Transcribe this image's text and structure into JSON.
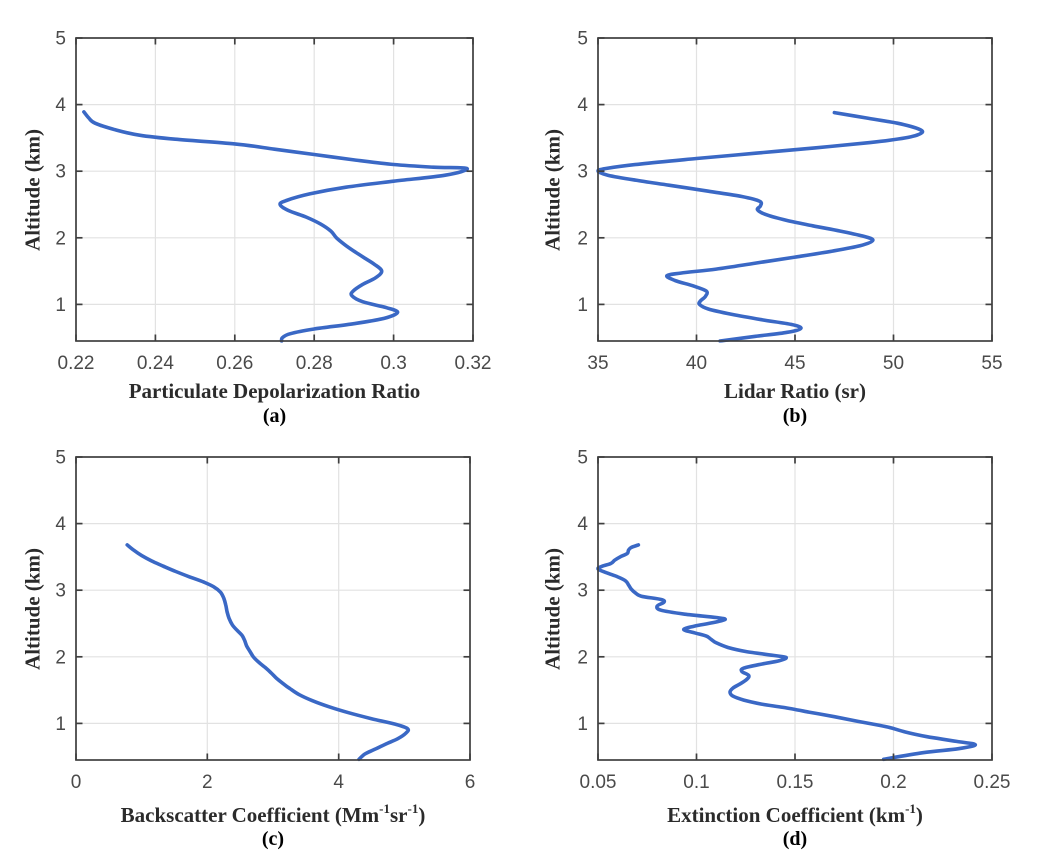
{
  "figure": {
    "title": "",
    "line_color": "#3a68c5",
    "axis_color": "#3f3f3f",
    "grid_color": "#e2e2e2",
    "tick_label_color": "#4a4a4a",
    "label_color": "#2b2b2b",
    "tag_color": "#000000",
    "background": "#ffffff"
  },
  "chart_data": [
    {
      "id": "a",
      "type": "line",
      "tag": "(a)",
      "xlabel": "Particulate Depolarization Ratio",
      "ylabel": "Altitude (km)",
      "xlim": [
        0.22,
        0.32
      ],
      "ylim": [
        0.45,
        5
      ],
      "xticks": [
        0.22,
        0.24,
        0.26,
        0.28,
        0.3,
        0.32
      ],
      "xtick_labels": [
        "0.22",
        "0.24",
        "0.26",
        "0.28",
        "0.3",
        "0.32"
      ],
      "yticks": [
        1,
        2,
        3,
        4,
        5
      ],
      "ytick_labels": [
        "1",
        "2",
        "3",
        "4",
        "5"
      ],
      "grid": true,
      "legend": null,
      "series": [
        {
          "name": "particulate-depolarization-profile",
          "points_format": "[x_value, altitude_km]",
          "points": [
            [
              0.222,
              3.89
            ],
            [
              0.2232,
              3.8
            ],
            [
              0.2248,
              3.72
            ],
            [
              0.23,
              3.62
            ],
            [
              0.236,
              3.54
            ],
            [
              0.245,
              3.48
            ],
            [
              0.26,
              3.41
            ],
            [
              0.27,
              3.33
            ],
            [
              0.28,
              3.25
            ],
            [
              0.29,
              3.17
            ],
            [
              0.3,
              3.1
            ],
            [
              0.31,
              3.06
            ],
            [
              0.3185,
              3.04
            ],
            [
              0.313,
              2.94
            ],
            [
              0.3,
              2.85
            ],
            [
              0.288,
              2.76
            ],
            [
              0.279,
              2.66
            ],
            [
              0.273,
              2.56
            ],
            [
              0.2714,
              2.5
            ],
            [
              0.2735,
              2.41
            ],
            [
              0.278,
              2.31
            ],
            [
              0.2815,
              2.21
            ],
            [
              0.2842,
              2.1
            ],
            [
              0.2856,
              2.0
            ],
            [
              0.2876,
              1.9
            ],
            [
              0.29,
              1.8
            ],
            [
              0.2926,
              1.7
            ],
            [
              0.2952,
              1.6
            ],
            [
              0.297,
              1.5
            ],
            [
              0.2955,
              1.4
            ],
            [
              0.2922,
              1.3
            ],
            [
              0.2898,
              1.2
            ],
            [
              0.2895,
              1.13
            ],
            [
              0.2922,
              1.04
            ],
            [
              0.2982,
              0.95
            ],
            [
              0.301,
              0.88
            ],
            [
              0.2976,
              0.79
            ],
            [
              0.29,
              0.71
            ],
            [
              0.28,
              0.63
            ],
            [
              0.274,
              0.56
            ],
            [
              0.272,
              0.5
            ],
            [
              0.2718,
              0.45
            ]
          ]
        }
      ]
    },
    {
      "id": "b",
      "type": "line",
      "tag": "(b)",
      "xlabel": "Lidar Ratio (sr)",
      "ylabel": "Altitude (km)",
      "xlim": [
        35,
        55
      ],
      "ylim": [
        0.45,
        5
      ],
      "xticks": [
        35,
        40,
        45,
        50,
        55
      ],
      "xtick_labels": [
        "35",
        "40",
        "45",
        "50",
        "55"
      ],
      "yticks": [
        1,
        2,
        3,
        4,
        5
      ],
      "ytick_labels": [
        "1",
        "2",
        "3",
        "4",
        "5"
      ],
      "grid": true,
      "legend": null,
      "series": [
        {
          "name": "lidar-ratio-profile",
          "points_format": "[x_value, altitude_km]",
          "points": [
            [
              47.0,
              3.88
            ],
            [
              48.6,
              3.8
            ],
            [
              50.2,
              3.72
            ],
            [
              51.3,
              3.63
            ],
            [
              51.4,
              3.57
            ],
            [
              50.6,
              3.5
            ],
            [
              48.8,
              3.43
            ],
            [
              46.0,
              3.35
            ],
            [
              43.0,
              3.27
            ],
            [
              40.0,
              3.19
            ],
            [
              37.2,
              3.11
            ],
            [
              35.4,
              3.04
            ],
            [
              35.0,
              3.0
            ],
            [
              35.5,
              2.94
            ],
            [
              36.8,
              2.87
            ],
            [
              38.6,
              2.79
            ],
            [
              40.6,
              2.7
            ],
            [
              42.3,
              2.62
            ],
            [
              43.2,
              2.55
            ],
            [
              43.25,
              2.48
            ],
            [
              43.1,
              2.42
            ],
            [
              43.6,
              2.34
            ],
            [
              44.6,
              2.26
            ],
            [
              45.9,
              2.18
            ],
            [
              47.3,
              2.1
            ],
            [
              48.5,
              2.02
            ],
            [
              48.95,
              1.96
            ],
            [
              48.3,
              1.88
            ],
            [
              46.9,
              1.8
            ],
            [
              45.0,
              1.71
            ],
            [
              43.0,
              1.62
            ],
            [
              41.0,
              1.53
            ],
            [
              39.2,
              1.47
            ],
            [
              38.5,
              1.43
            ],
            [
              38.9,
              1.36
            ],
            [
              39.8,
              1.28
            ],
            [
              40.5,
              1.2
            ],
            [
              40.45,
              1.12
            ],
            [
              40.2,
              1.05
            ],
            [
              40.15,
              1.0
            ],
            [
              40.6,
              0.93
            ],
            [
              41.8,
              0.85
            ],
            [
              43.3,
              0.77
            ],
            [
              44.8,
              0.7
            ],
            [
              45.3,
              0.64
            ],
            [
              44.6,
              0.58
            ],
            [
              43.0,
              0.52
            ],
            [
              41.2,
              0.45
            ]
          ]
        }
      ]
    },
    {
      "id": "c",
      "type": "line",
      "tag": "(c)",
      "xlabel": "Backscatter Coefficient (Mm⁻¹sr⁻¹)",
      "ylabel": "Altitude (km)",
      "xlim": [
        0,
        6
      ],
      "ylim": [
        0.45,
        5
      ],
      "xticks": [
        0,
        2,
        4,
        6
      ],
      "xtick_labels": [
        "0",
        "2",
        "4",
        "6"
      ],
      "yticks": [
        1,
        2,
        3,
        4,
        5
      ],
      "ytick_labels": [
        "1",
        "2",
        "3",
        "4",
        "5"
      ],
      "grid": true,
      "legend": null,
      "series": [
        {
          "name": "backscatter-coefficient-profile",
          "points_format": "[x_value, altitude_km]",
          "points": [
            [
              0.78,
              3.68
            ],
            [
              0.88,
              3.6
            ],
            [
              1.0,
              3.52
            ],
            [
              1.15,
              3.44
            ],
            [
              1.33,
              3.36
            ],
            [
              1.52,
              3.28
            ],
            [
              1.73,
              3.2
            ],
            [
              1.95,
              3.12
            ],
            [
              2.1,
              3.05
            ],
            [
              2.2,
              2.97
            ],
            [
              2.25,
              2.88
            ],
            [
              2.28,
              2.78
            ],
            [
              2.3,
              2.68
            ],
            [
              2.33,
              2.58
            ],
            [
              2.38,
              2.48
            ],
            [
              2.45,
              2.4
            ],
            [
              2.53,
              2.32
            ],
            [
              2.57,
              2.24
            ],
            [
              2.6,
              2.16
            ],
            [
              2.65,
              2.08
            ],
            [
              2.7,
              2.0
            ],
            [
              2.78,
              1.92
            ],
            [
              2.88,
              1.84
            ],
            [
              2.97,
              1.76
            ],
            [
              3.05,
              1.68
            ],
            [
              3.15,
              1.6
            ],
            [
              3.26,
              1.52
            ],
            [
              3.4,
              1.43
            ],
            [
              3.6,
              1.34
            ],
            [
              3.85,
              1.25
            ],
            [
              4.15,
              1.16
            ],
            [
              4.5,
              1.07
            ],
            [
              4.85,
              0.99
            ],
            [
              5.05,
              0.92
            ],
            [
              5.02,
              0.85
            ],
            [
              4.9,
              0.77
            ],
            [
              4.72,
              0.69
            ],
            [
              4.55,
              0.61
            ],
            [
              4.4,
              0.54
            ],
            [
              4.31,
              0.46
            ]
          ]
        }
      ]
    },
    {
      "id": "d",
      "type": "line",
      "tag": "(d)",
      "xlabel": "Extinction Coefficient (km⁻¹)",
      "ylabel": "Altitude (km)",
      "xlim": [
        0.05,
        0.25
      ],
      "ylim": [
        0.45,
        5
      ],
      "xticks": [
        0.05,
        0.1,
        0.15,
        0.2,
        0.25
      ],
      "xtick_labels": [
        "0.05",
        "0.1",
        "0.15",
        "0.2",
        "0.25"
      ],
      "yticks": [
        1,
        2,
        3,
        4,
        5
      ],
      "ytick_labels": [
        "1",
        "2",
        "3",
        "4",
        "5"
      ],
      "grid": true,
      "legend": null,
      "series": [
        {
          "name": "extinction-coefficient-profile",
          "points_format": "[x_value, altitude_km]",
          "points": [
            [
              0.0705,
              3.68
            ],
            [
              0.0668,
              3.64
            ],
            [
              0.0655,
              3.6
            ],
            [
              0.0648,
              3.55
            ],
            [
              0.0612,
              3.5
            ],
            [
              0.0585,
              3.45
            ],
            [
              0.0565,
              3.4
            ],
            [
              0.0522,
              3.36
            ],
            [
              0.05,
              3.32
            ],
            [
              0.0545,
              3.26
            ],
            [
              0.06,
              3.2
            ],
            [
              0.064,
              3.14
            ],
            [
              0.0655,
              3.08
            ],
            [
              0.0668,
              3.02
            ],
            [
              0.069,
              2.96
            ],
            [
              0.072,
              2.91
            ],
            [
              0.082,
              2.86
            ],
            [
              0.0835,
              2.82
            ],
            [
              0.08,
              2.76
            ],
            [
              0.082,
              2.7
            ],
            [
              0.094,
              2.64
            ],
            [
              0.11,
              2.59
            ],
            [
              0.1145,
              2.56
            ],
            [
              0.108,
              2.51
            ],
            [
              0.099,
              2.46
            ],
            [
              0.0935,
              2.41
            ],
            [
              0.099,
              2.36
            ],
            [
              0.105,
              2.31
            ],
            [
              0.1075,
              2.26
            ],
            [
              0.11,
              2.21
            ],
            [
              0.116,
              2.14
            ],
            [
              0.125,
              2.08
            ],
            [
              0.139,
              2.02
            ],
            [
              0.1455,
              1.99
            ],
            [
              0.142,
              1.94
            ],
            [
              0.133,
              1.89
            ],
            [
              0.124,
              1.83
            ],
            [
              0.123,
              1.78
            ],
            [
              0.1265,
              1.72
            ],
            [
              0.1255,
              1.66
            ],
            [
              0.122,
              1.59
            ],
            [
              0.1185,
              1.53
            ],
            [
              0.117,
              1.47
            ],
            [
              0.1185,
              1.41
            ],
            [
              0.124,
              1.35
            ],
            [
              0.133,
              1.29
            ],
            [
              0.144,
              1.24
            ],
            [
              0.157,
              1.17
            ],
            [
              0.17,
              1.1
            ],
            [
              0.182,
              1.03
            ],
            [
              0.193,
              0.97
            ],
            [
              0.199,
              0.93
            ],
            [
              0.206,
              0.87
            ],
            [
              0.217,
              0.8
            ],
            [
              0.232,
              0.73
            ],
            [
              0.2415,
              0.68
            ],
            [
              0.233,
              0.62
            ],
            [
              0.215,
              0.56
            ],
            [
              0.195,
              0.46
            ]
          ]
        }
      ]
    }
  ]
}
